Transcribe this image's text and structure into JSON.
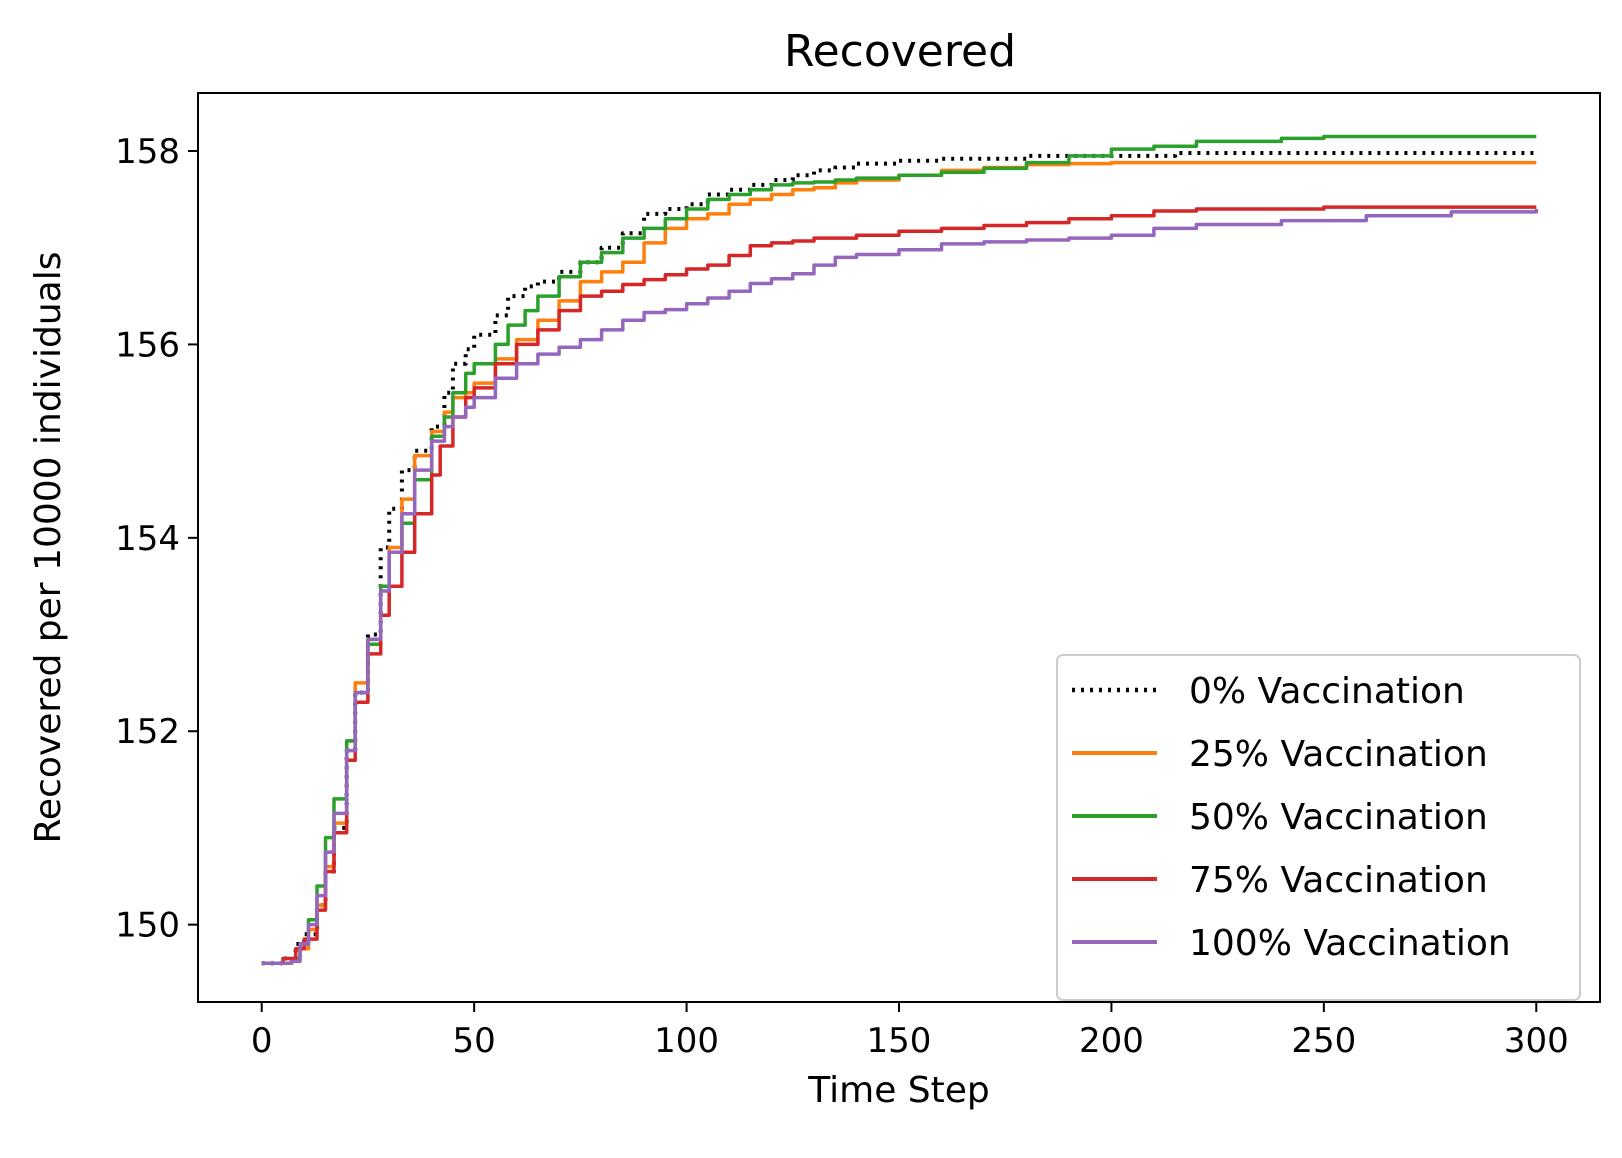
{
  "chart_data": {
    "type": "line",
    "title": "Recovered",
    "xlabel": "Time Step",
    "ylabel": "Recovered per 10000 individuals",
    "xlim": [
      -15,
      315
    ],
    "ylim": [
      149.2,
      158.6
    ],
    "xticks": [
      0,
      50,
      100,
      150,
      200,
      250,
      300
    ],
    "yticks": [
      150,
      152,
      154,
      156,
      158
    ],
    "grid": false,
    "legend_position": "lower-right",
    "series": [
      {
        "name": "0% Vaccination",
        "color": "#000000",
        "dash": "dotted",
        "points": [
          [
            0,
            149.6
          ],
          [
            5,
            149.65
          ],
          [
            8,
            149.8
          ],
          [
            10,
            149.9
          ],
          [
            13,
            150.2
          ],
          [
            15,
            150.55
          ],
          [
            17,
            151.0
          ],
          [
            20,
            151.8
          ],
          [
            22,
            152.4
          ],
          [
            25,
            153.0
          ],
          [
            28,
            153.9
          ],
          [
            30,
            154.3
          ],
          [
            33,
            154.7
          ],
          [
            36,
            154.9
          ],
          [
            40,
            155.15
          ],
          [
            43,
            155.5
          ],
          [
            45,
            155.8
          ],
          [
            48,
            155.95
          ],
          [
            50,
            156.1
          ],
          [
            55,
            156.3
          ],
          [
            58,
            156.5
          ],
          [
            62,
            156.6
          ],
          [
            65,
            156.65
          ],
          [
            70,
            156.75
          ],
          [
            75,
            156.85
          ],
          [
            80,
            157.0
          ],
          [
            85,
            157.15
          ],
          [
            90,
            157.35
          ],
          [
            95,
            157.4
          ],
          [
            100,
            157.45
          ],
          [
            105,
            157.55
          ],
          [
            110,
            157.6
          ],
          [
            115,
            157.65
          ],
          [
            120,
            157.7
          ],
          [
            125,
            157.75
          ],
          [
            130,
            157.8
          ],
          [
            135,
            157.83
          ],
          [
            140,
            157.87
          ],
          [
            150,
            157.9
          ],
          [
            160,
            157.92
          ],
          [
            180,
            157.95
          ],
          [
            200,
            157.95
          ],
          [
            212,
            157.95
          ],
          [
            215,
            157.98
          ],
          [
            250,
            157.98
          ],
          [
            300,
            157.98
          ]
        ]
      },
      {
        "name": "25% Vaccination",
        "color": "#ff7f0e",
        "dash": "solid",
        "points": [
          [
            0,
            149.6
          ],
          [
            5,
            149.6
          ],
          [
            7,
            149.65
          ],
          [
            9,
            149.75
          ],
          [
            11,
            149.95
          ],
          [
            13,
            150.2
          ],
          [
            15,
            150.6
          ],
          [
            17,
            151.05
          ],
          [
            20,
            151.9
          ],
          [
            22,
            152.5
          ],
          [
            25,
            152.95
          ],
          [
            28,
            153.5
          ],
          [
            30,
            153.9
          ],
          [
            33,
            154.4
          ],
          [
            36,
            154.85
          ],
          [
            40,
            155.1
          ],
          [
            43,
            155.3
          ],
          [
            45,
            155.45
          ],
          [
            48,
            155.5
          ],
          [
            50,
            155.6
          ],
          [
            55,
            155.85
          ],
          [
            60,
            156.05
          ],
          [
            65,
            156.25
          ],
          [
            70,
            156.45
          ],
          [
            75,
            156.65
          ],
          [
            80,
            156.75
          ],
          [
            85,
            156.85
          ],
          [
            90,
            157.05
          ],
          [
            95,
            157.2
          ],
          [
            100,
            157.3
          ],
          [
            105,
            157.35
          ],
          [
            110,
            157.45
          ],
          [
            115,
            157.5
          ],
          [
            120,
            157.55
          ],
          [
            125,
            157.6
          ],
          [
            130,
            157.62
          ],
          [
            135,
            157.67
          ],
          [
            140,
            157.7
          ],
          [
            150,
            157.75
          ],
          [
            160,
            157.8
          ],
          [
            170,
            157.83
          ],
          [
            180,
            157.86
          ],
          [
            190,
            157.87
          ],
          [
            200,
            157.88
          ],
          [
            250,
            157.88
          ],
          [
            300,
            157.88
          ]
        ]
      },
      {
        "name": "50% Vaccination",
        "color": "#2ca02c",
        "dash": "solid",
        "points": [
          [
            0,
            149.6
          ],
          [
            5,
            149.6
          ],
          [
            7,
            149.65
          ],
          [
            9,
            149.8
          ],
          [
            11,
            150.05
          ],
          [
            13,
            150.4
          ],
          [
            15,
            150.9
          ],
          [
            17,
            151.3
          ],
          [
            20,
            151.9
          ],
          [
            22,
            152.4
          ],
          [
            25,
            152.9
          ],
          [
            28,
            153.5
          ],
          [
            30,
            153.85
          ],
          [
            33,
            154.15
          ],
          [
            36,
            154.6
          ],
          [
            40,
            155.05
          ],
          [
            43,
            155.25
          ],
          [
            45,
            155.5
          ],
          [
            48,
            155.7
          ],
          [
            50,
            155.8
          ],
          [
            55,
            156.0
          ],
          [
            58,
            156.2
          ],
          [
            62,
            156.35
          ],
          [
            65,
            156.5
          ],
          [
            70,
            156.7
          ],
          [
            75,
            156.85
          ],
          [
            80,
            156.95
          ],
          [
            85,
            157.1
          ],
          [
            90,
            157.2
          ],
          [
            95,
            157.3
          ],
          [
            100,
            157.4
          ],
          [
            105,
            157.5
          ],
          [
            110,
            157.55
          ],
          [
            115,
            157.6
          ],
          [
            120,
            157.65
          ],
          [
            125,
            157.67
          ],
          [
            130,
            157.68
          ],
          [
            135,
            157.7
          ],
          [
            140,
            157.72
          ],
          [
            150,
            157.75
          ],
          [
            160,
            157.78
          ],
          [
            170,
            157.82
          ],
          [
            180,
            157.88
          ],
          [
            190,
            157.95
          ],
          [
            200,
            158.02
          ],
          [
            210,
            158.05
          ],
          [
            220,
            158.1
          ],
          [
            240,
            158.13
          ],
          [
            250,
            158.15
          ],
          [
            300,
            158.15
          ]
        ]
      },
      {
        "name": "75% Vaccination",
        "color": "#d62728",
        "dash": "solid",
        "points": [
          [
            0,
            149.6
          ],
          [
            5,
            149.65
          ],
          [
            8,
            149.75
          ],
          [
            10,
            149.85
          ],
          [
            13,
            150.15
          ],
          [
            15,
            150.55
          ],
          [
            17,
            150.95
          ],
          [
            20,
            151.7
          ],
          [
            22,
            152.3
          ],
          [
            25,
            152.8
          ],
          [
            28,
            153.2
          ],
          [
            30,
            153.5
          ],
          [
            33,
            153.85
          ],
          [
            36,
            154.25
          ],
          [
            40,
            154.65
          ],
          [
            42,
            154.95
          ],
          [
            45,
            155.25
          ],
          [
            48,
            155.45
          ],
          [
            50,
            155.55
          ],
          [
            55,
            155.8
          ],
          [
            60,
            156.0
          ],
          [
            65,
            156.15
          ],
          [
            70,
            156.35
          ],
          [
            75,
            156.5
          ],
          [
            80,
            156.55
          ],
          [
            85,
            156.62
          ],
          [
            90,
            156.67
          ],
          [
            95,
            156.72
          ],
          [
            100,
            156.78
          ],
          [
            105,
            156.82
          ],
          [
            110,
            156.92
          ],
          [
            115,
            157.02
          ],
          [
            120,
            157.05
          ],
          [
            125,
            157.07
          ],
          [
            130,
            157.1
          ],
          [
            140,
            157.13
          ],
          [
            150,
            157.17
          ],
          [
            160,
            157.2
          ],
          [
            170,
            157.23
          ],
          [
            180,
            157.26
          ],
          [
            190,
            157.3
          ],
          [
            200,
            157.33
          ],
          [
            210,
            157.38
          ],
          [
            220,
            157.4
          ],
          [
            250,
            157.42
          ],
          [
            300,
            157.42
          ]
        ]
      },
      {
        "name": "100% Vaccination",
        "color": "#9467bd",
        "dash": "solid",
        "points": [
          [
            0,
            149.6
          ],
          [
            5,
            149.6
          ],
          [
            7,
            149.62
          ],
          [
            9,
            149.8
          ],
          [
            11,
            150.0
          ],
          [
            13,
            150.3
          ],
          [
            15,
            150.75
          ],
          [
            17,
            151.15
          ],
          [
            20,
            151.8
          ],
          [
            22,
            152.4
          ],
          [
            25,
            152.95
          ],
          [
            28,
            153.45
          ],
          [
            30,
            153.85
          ],
          [
            33,
            154.25
          ],
          [
            36,
            154.7
          ],
          [
            40,
            155.0
          ],
          [
            43,
            155.15
          ],
          [
            45,
            155.25
          ],
          [
            48,
            155.35
          ],
          [
            50,
            155.45
          ],
          [
            55,
            155.65
          ],
          [
            60,
            155.8
          ],
          [
            65,
            155.9
          ],
          [
            70,
            155.97
          ],
          [
            75,
            156.05
          ],
          [
            80,
            156.15
          ],
          [
            85,
            156.25
          ],
          [
            90,
            156.33
          ],
          [
            95,
            156.36
          ],
          [
            100,
            156.42
          ],
          [
            105,
            156.48
          ],
          [
            110,
            156.55
          ],
          [
            115,
            156.63
          ],
          [
            120,
            156.68
          ],
          [
            125,
            156.73
          ],
          [
            130,
            156.82
          ],
          [
            135,
            156.9
          ],
          [
            140,
            156.93
          ],
          [
            150,
            156.98
          ],
          [
            160,
            157.04
          ],
          [
            170,
            157.06
          ],
          [
            180,
            157.08
          ],
          [
            190,
            157.1
          ],
          [
            200,
            157.13
          ],
          [
            210,
            157.2
          ],
          [
            220,
            157.24
          ],
          [
            240,
            157.28
          ],
          [
            260,
            157.33
          ],
          [
            280,
            157.37
          ],
          [
            300,
            157.4
          ]
        ]
      }
    ]
  }
}
